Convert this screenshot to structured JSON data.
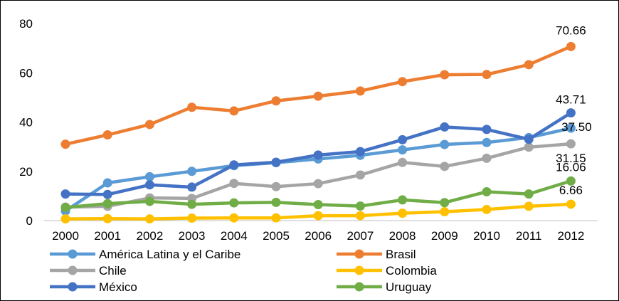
{
  "chart_data": {
    "type": "line",
    "title": "",
    "xlabel": "",
    "ylabel": "",
    "x": [
      "2000",
      "2001",
      "2002",
      "2003",
      "2004",
      "2005",
      "2006",
      "2007",
      "2008",
      "2009",
      "2010",
      "2011",
      "2012"
    ],
    "ylim": [
      0,
      80
    ],
    "yticks": [
      0,
      20,
      40,
      60,
      80
    ],
    "grid": false,
    "legend_position": "bottom",
    "series": [
      {
        "name": "América Latina y el Caribe",
        "color": "#5B9BD5",
        "values": [
          3.9,
          15.3,
          17.8,
          20.0,
          22.3,
          23.5,
          25.0,
          26.5,
          28.7,
          30.9,
          31.7,
          33.7,
          37.5
        ],
        "end_label": "37.50"
      },
      {
        "name": "Brasil",
        "color": "#ED7D31",
        "values": [
          31.0,
          34.8,
          39.0,
          46.0,
          44.5,
          48.6,
          50.5,
          52.6,
          56.4,
          59.2,
          59.3,
          63.3,
          70.66
        ],
        "end_label": "70.66"
      },
      {
        "name": "Chile",
        "color": "#A5A5A5",
        "values": [
          5.5,
          5.8,
          9.2,
          9.0,
          15.1,
          13.8,
          15.0,
          18.5,
          23.6,
          22.0,
          25.3,
          29.8,
          31.15
        ],
        "end_label": "31.15"
      },
      {
        "name": "Colombia",
        "color": "#FFC000",
        "values": [
          0.7,
          0.8,
          0.7,
          1.0,
          1.1,
          1.1,
          2.0,
          2.0,
          3.0,
          3.6,
          4.5,
          5.8,
          6.66
        ],
        "end_label": "6.66"
      },
      {
        "name": "México",
        "color": "#4472C4",
        "values": [
          10.8,
          10.6,
          14.5,
          13.6,
          22.6,
          23.7,
          26.6,
          28.0,
          32.8,
          38.0,
          37.0,
          33.0,
          43.71
        ],
        "end_label": "43.71"
      },
      {
        "name": "Uruguay",
        "color": "#70AD47",
        "values": [
          5.3,
          6.9,
          7.8,
          6.6,
          7.2,
          7.4,
          6.5,
          5.9,
          8.4,
          7.3,
          11.7,
          10.8,
          16.06
        ],
        "end_label": "16.06"
      }
    ]
  }
}
